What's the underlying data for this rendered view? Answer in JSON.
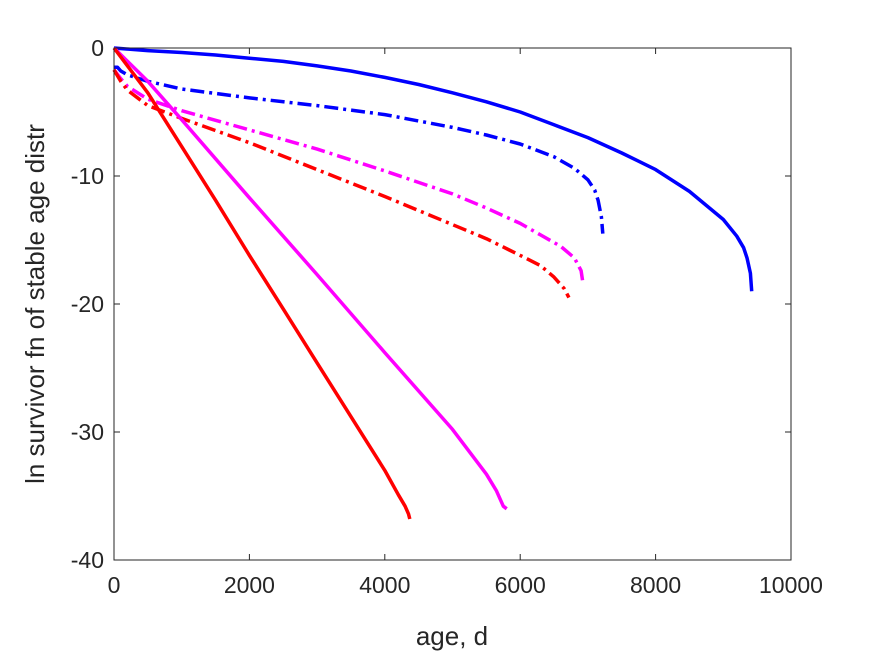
{
  "chart_data": {
    "type": "line",
    "title": "",
    "xlabel": "age, d",
    "ylabel": "ln survivor fn of stable age distr",
    "xlim": [
      0,
      10000
    ],
    "ylim": [
      -40,
      0
    ],
    "xticks": [
      0,
      2000,
      4000,
      6000,
      8000,
      10000
    ],
    "yticks": [
      -40,
      -30,
      -20,
      -10,
      0
    ],
    "xtick_labels": [
      "0",
      "2000",
      "4000",
      "6000",
      "8000",
      "10000"
    ],
    "ytick_labels": [
      "-40",
      "-30",
      "-20",
      "-10",
      "0"
    ],
    "grid": false,
    "legend": "none",
    "series": [
      {
        "color": "#0000ff",
        "style": "solid",
        "x": [
          0,
          500,
          1000,
          1500,
          2000,
          2500,
          3000,
          3500,
          4000,
          4500,
          5000,
          5500,
          6000,
          6500,
          7000,
          7500,
          8000,
          8500,
          9000,
          9200,
          9300,
          9350,
          9400,
          9420
        ],
        "y": [
          0,
          -0.2,
          -0.35,
          -0.55,
          -0.8,
          -1.05,
          -1.4,
          -1.8,
          -2.3,
          -2.85,
          -3.5,
          -4.2,
          -5.0,
          -6.0,
          -7.0,
          -8.2,
          -9.5,
          -11.2,
          -13.4,
          -14.7,
          -15.6,
          -16.4,
          -17.6,
          -19.0
        ]
      },
      {
        "color": "#0000ff",
        "style": "dashdot",
        "x": [
          0,
          50,
          100,
          200,
          500,
          1000,
          2000,
          3000,
          4000,
          5000,
          5500,
          6000,
          6500,
          6800,
          7000,
          7100,
          7150,
          7200,
          7220
        ],
        "y": [
          -1.5,
          -1.5,
          -1.8,
          -2.1,
          -2.6,
          -3.2,
          -3.9,
          -4.5,
          -5.2,
          -6.2,
          -6.8,
          -7.5,
          -8.5,
          -9.4,
          -10.3,
          -11.1,
          -11.9,
          -13.2,
          -14.5
        ]
      },
      {
        "color": "#ff00ff",
        "style": "dashdot",
        "x": [
          0,
          100,
          200,
          500,
          1000,
          2000,
          3000,
          4000,
          5000,
          5500,
          6000,
          6300,
          6600,
          6800,
          6900,
          6930
        ],
        "y": [
          -1.7,
          -2.4,
          -3.0,
          -4.0,
          -4.9,
          -6.4,
          -7.9,
          -9.6,
          -11.4,
          -12.5,
          -13.7,
          -14.6,
          -15.5,
          -16.4,
          -17.4,
          -18.5
        ]
      },
      {
        "color": "#ff0000",
        "style": "dashdot",
        "x": [
          0,
          100,
          200,
          500,
          1000,
          2000,
          3000,
          4000,
          5000,
          5500,
          6000,
          6300,
          6500,
          6650,
          6720
        ],
        "y": [
          -1.7,
          -2.6,
          -3.3,
          -4.5,
          -5.5,
          -7.4,
          -9.5,
          -11.6,
          -13.8,
          -14.9,
          -16.2,
          -17.0,
          -17.9,
          -18.8,
          -19.5
        ]
      },
      {
        "color": "#ff00ff",
        "style": "solid",
        "x": [
          0,
          500,
          1000,
          2000,
          3000,
          4000,
          5000,
          5500,
          5650,
          5750,
          5800
        ],
        "y": [
          0,
          -2.6,
          -5.6,
          -11.7,
          -17.7,
          -23.8,
          -29.8,
          -33.3,
          -34.6,
          -35.8,
          -36.0
        ]
      },
      {
        "color": "#ff0000",
        "style": "solid",
        "x": [
          0,
          500,
          1000,
          1500,
          2000,
          2500,
          3000,
          3500,
          4000,
          4200,
          4300,
          4350,
          4370
        ],
        "y": [
          0,
          -3.5,
          -7.7,
          -11.9,
          -16.2,
          -20.4,
          -24.6,
          -28.8,
          -33.0,
          -34.9,
          -35.8,
          -36.4,
          -36.8
        ]
      }
    ]
  }
}
